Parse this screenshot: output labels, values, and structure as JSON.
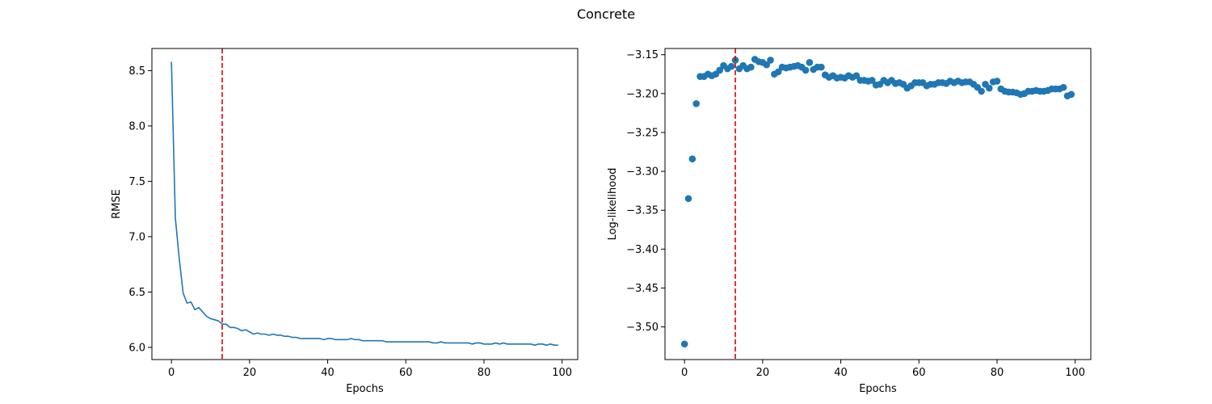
{
  "figure": {
    "title": "Concrete"
  },
  "chart_data": [
    {
      "type": "line",
      "xlabel": "Epochs",
      "ylabel": "RMSE",
      "xlim": [
        -5,
        104
      ],
      "ylim": [
        5.89,
        8.7
      ],
      "xticks": [
        0,
        20,
        40,
        60,
        80,
        100
      ],
      "yticks": [
        6.0,
        6.5,
        7.0,
        7.5,
        8.0,
        8.5
      ],
      "ytick_labels": [
        "6.0",
        "6.5",
        "7.0",
        "7.5",
        "8.0",
        "8.5"
      ],
      "vline": {
        "x": 13,
        "color": "#e00000",
        "style": "dashed"
      },
      "series": [
        {
          "color": "#1f77b4",
          "x": [
            0,
            1,
            2,
            3,
            4,
            5,
            6,
            7,
            8,
            9,
            10,
            11,
            12,
            13,
            14,
            15,
            16,
            17,
            18,
            19,
            20,
            21,
            22,
            23,
            24,
            25,
            26,
            27,
            28,
            29,
            30,
            31,
            32,
            33,
            34,
            35,
            36,
            37,
            38,
            39,
            40,
            41,
            42,
            43,
            44,
            45,
            46,
            47,
            48,
            49,
            50,
            51,
            52,
            53,
            54,
            55,
            56,
            57,
            58,
            59,
            60,
            61,
            62,
            63,
            64,
            65,
            66,
            67,
            68,
            69,
            70,
            71,
            72,
            73,
            74,
            75,
            76,
            77,
            78,
            79,
            80,
            81,
            82,
            83,
            84,
            85,
            86,
            87,
            88,
            89,
            90,
            91,
            92,
            93,
            94,
            95,
            96,
            97,
            98,
            99
          ],
          "y": [
            8.58,
            7.17,
            6.8,
            6.49,
            6.4,
            6.41,
            6.34,
            6.36,
            6.32,
            6.28,
            6.26,
            6.25,
            6.24,
            6.21,
            6.21,
            6.18,
            6.18,
            6.17,
            6.15,
            6.16,
            6.14,
            6.12,
            6.13,
            6.12,
            6.12,
            6.11,
            6.12,
            6.11,
            6.11,
            6.1,
            6.1,
            6.09,
            6.09,
            6.08,
            6.08,
            6.08,
            6.08,
            6.08,
            6.08,
            6.07,
            6.08,
            6.08,
            6.07,
            6.07,
            6.07,
            6.07,
            6.08,
            6.07,
            6.07,
            6.06,
            6.06,
            6.06,
            6.06,
            6.06,
            6.06,
            6.05,
            6.05,
            6.05,
            6.05,
            6.05,
            6.05,
            6.05,
            6.05,
            6.05,
            6.05,
            6.05,
            6.05,
            6.04,
            6.04,
            6.05,
            6.04,
            6.04,
            6.04,
            6.04,
            6.04,
            6.04,
            6.04,
            6.03,
            6.04,
            6.04,
            6.03,
            6.03,
            6.03,
            6.04,
            6.03,
            6.04,
            6.03,
            6.03,
            6.03,
            6.03,
            6.03,
            6.03,
            6.03,
            6.02,
            6.03,
            6.03,
            6.02,
            6.03,
            6.02,
            6.02
          ]
        }
      ]
    },
    {
      "type": "scatter",
      "xlabel": "Epochs",
      "ylabel": "Log-likelihood",
      "xlim": [
        -5,
        104
      ],
      "ylim": [
        -3.542,
        -3.142
      ],
      "xticks": [
        0,
        20,
        40,
        60,
        80,
        100
      ],
      "yticks": [
        -3.5,
        -3.45,
        -3.4,
        -3.35,
        -3.3,
        -3.25,
        -3.2,
        -3.15
      ],
      "ytick_labels": [
        "−3.50",
        "−3.45",
        "−3.40",
        "−3.35",
        "−3.30",
        "−3.25",
        "−3.20",
        "−3.15"
      ],
      "vline": {
        "x": 13,
        "color": "#e00000",
        "style": "dashed"
      },
      "series": [
        {
          "color": "#1f77b4",
          "x": [
            0,
            1,
            2,
            3,
            4,
            5,
            6,
            7,
            8,
            9,
            10,
            11,
            12,
            13,
            14,
            15,
            16,
            17,
            18,
            19,
            20,
            21,
            22,
            23,
            24,
            25,
            26,
            27,
            28,
            29,
            30,
            31,
            32,
            33,
            34,
            35,
            36,
            37,
            38,
            39,
            40,
            41,
            42,
            43,
            44,
            45,
            46,
            47,
            48,
            49,
            50,
            51,
            52,
            53,
            54,
            55,
            56,
            57,
            58,
            59,
            60,
            61,
            62,
            63,
            64,
            65,
            66,
            67,
            68,
            69,
            70,
            71,
            72,
            73,
            74,
            75,
            76,
            77,
            78,
            79,
            80,
            81,
            82,
            83,
            84,
            85,
            86,
            87,
            88,
            89,
            90,
            91,
            92,
            93,
            94,
            95,
            96,
            97,
            98,
            99
          ],
          "y": [
            -3.522,
            -3.335,
            -3.284,
            -3.213,
            -3.178,
            -3.178,
            -3.175,
            -3.177,
            -3.175,
            -3.17,
            -3.164,
            -3.168,
            -3.165,
            -3.157,
            -3.168,
            -3.164,
            -3.168,
            -3.166,
            -3.156,
            -3.159,
            -3.16,
            -3.163,
            -3.157,
            -3.175,
            -3.172,
            -3.166,
            -3.167,
            -3.166,
            -3.165,
            -3.164,
            -3.166,
            -3.17,
            -3.16,
            -3.169,
            -3.166,
            -3.166,
            -3.176,
            -3.179,
            -3.177,
            -3.18,
            -3.179,
            -3.18,
            -3.177,
            -3.179,
            -3.177,
            -3.183,
            -3.183,
            -3.184,
            -3.183,
            -3.189,
            -3.188,
            -3.183,
            -3.186,
            -3.183,
            -3.187,
            -3.186,
            -3.188,
            -3.193,
            -3.19,
            -3.186,
            -3.186,
            -3.186,
            -3.19,
            -3.188,
            -3.188,
            -3.186,
            -3.186,
            -3.187,
            -3.184,
            -3.186,
            -3.184,
            -3.186,
            -3.185,
            -3.185,
            -3.188,
            -3.192,
            -3.197,
            -3.188,
            -3.193,
            -3.185,
            -3.184,
            -3.194,
            -3.197,
            -3.198,
            -3.198,
            -3.199,
            -3.201,
            -3.2,
            -3.197,
            -3.197,
            -3.196,
            -3.197,
            -3.197,
            -3.196,
            -3.194,
            -3.194,
            -3.194,
            -3.192,
            -3.203,
            -3.201
          ]
        }
      ]
    }
  ]
}
